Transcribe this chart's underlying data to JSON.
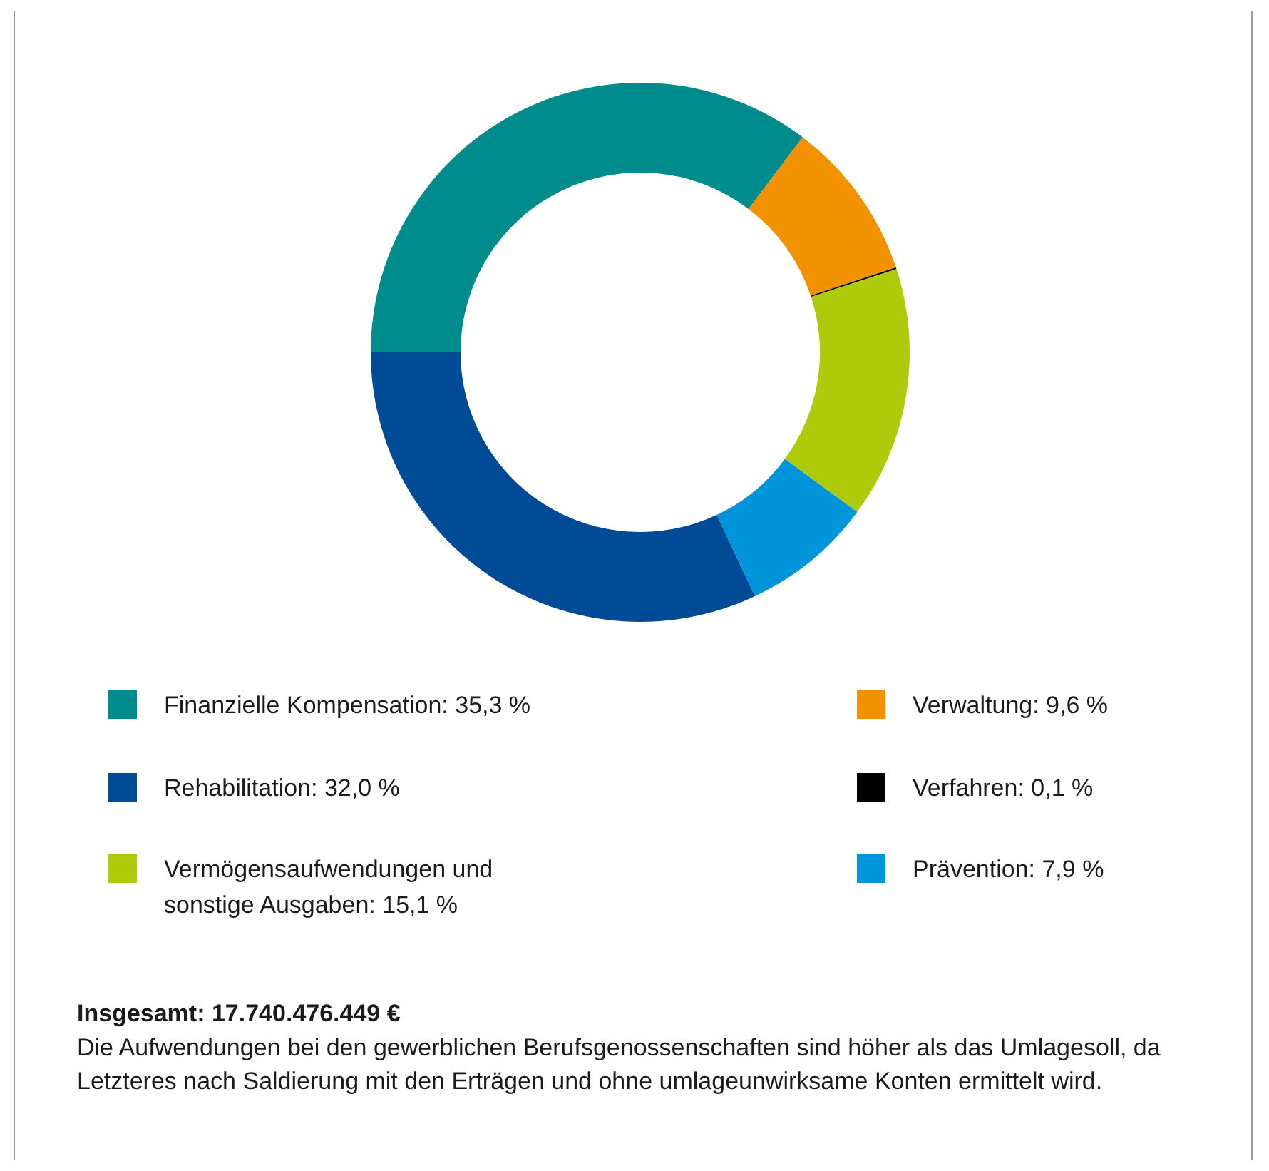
{
  "chart_data": {
    "type": "donut",
    "title": "Insgesamt: 17.740.476.449 €",
    "categories": [
      "Finanzielle Kompensation",
      "Verwaltung",
      "Verfahren",
      "Vermögensaufwendungen und sonstige Ausgaben",
      "Prävention",
      "Rehabilitation"
    ],
    "values": [
      35.3,
      9.6,
      0.1,
      15.1,
      7.9,
      32.0
    ],
    "value_labels": [
      "35,3 %",
      "9,6 %",
      "0,1 %",
      "15,1 %",
      "7,9 %",
      "32,0 %"
    ],
    "colors": [
      "#008c8c",
      "#f39200",
      "#000000",
      "#afca0b",
      "#0095db",
      "#004a96"
    ],
    "legend": "bottom",
    "annotations": [
      "Die Aufwendungen bei den gewerblichen Berufsgenossenschaften sind höher als das Umlagesoll, da Letzteres nach Saldierung mit den Erträgen und ohne umlageunwirksame Konten ermittelt wird."
    ]
  }
}
